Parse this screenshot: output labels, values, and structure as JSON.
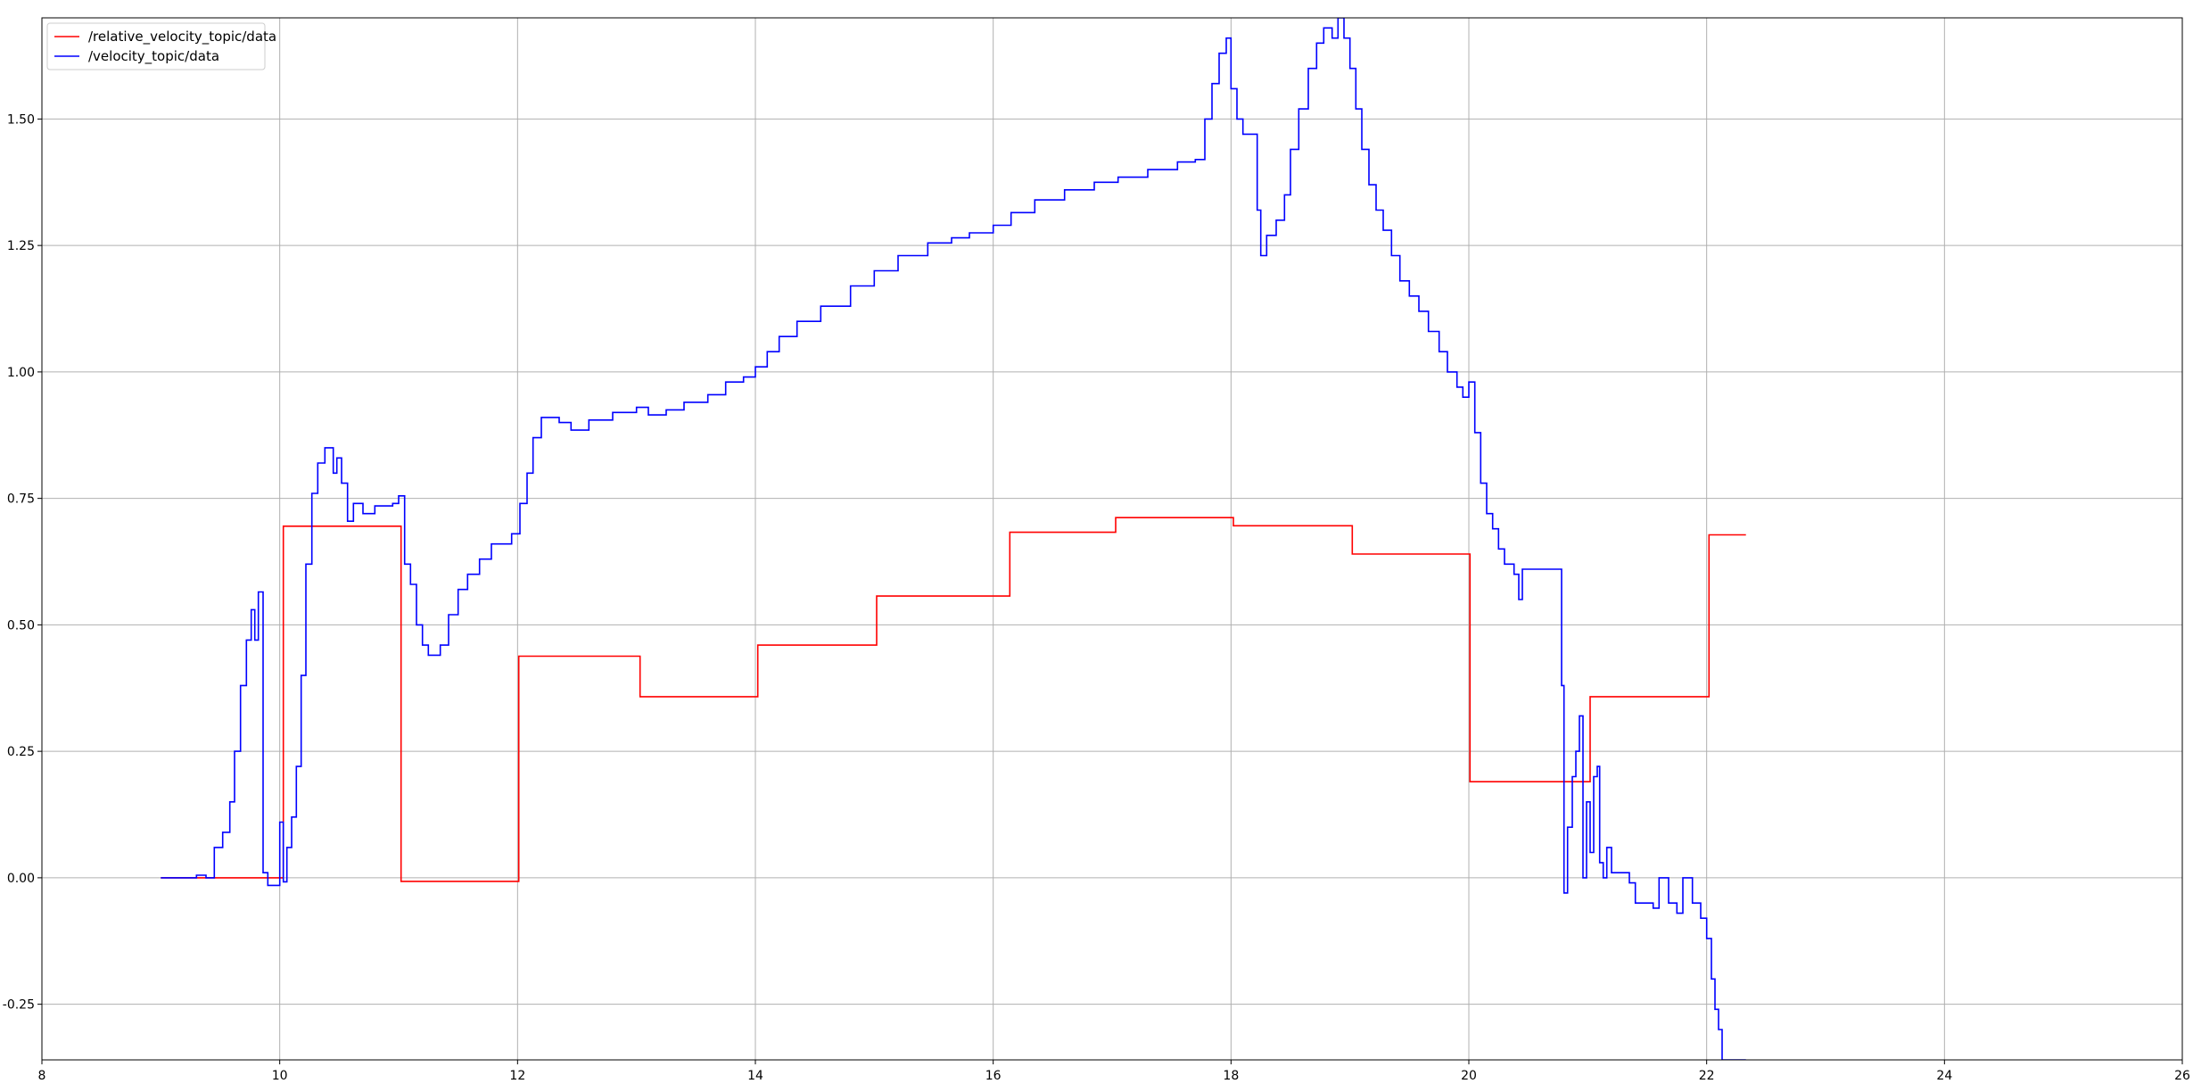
{
  "chart_data": {
    "type": "line",
    "title": "",
    "xlabel": "",
    "ylabel": "",
    "xlim": [
      8,
      26
    ],
    "ylim": [
      -0.36,
      1.7
    ],
    "grid": true,
    "legend_placement": "top-left",
    "x_ticks": [
      "8",
      "10",
      "12",
      "14",
      "16",
      "18",
      "20",
      "22",
      "24",
      "26"
    ],
    "y_ticks": [
      "-0.25",
      "0.00",
      "0.25",
      "0.50",
      "0.75",
      "1.00",
      "1.25",
      "1.50"
    ],
    "series": [
      {
        "name": "/relative_velocity_topic/data",
        "color": "#ff0000",
        "step": true,
        "points": [
          [
            9.0,
            0.0
          ],
          [
            10.03,
            0.0
          ],
          [
            10.03,
            0.695
          ],
          [
            11.02,
            0.695
          ],
          [
            11.02,
            -0.007
          ],
          [
            12.01,
            -0.007
          ],
          [
            12.01,
            0.438
          ],
          [
            13.03,
            0.438
          ],
          [
            13.03,
            0.358
          ],
          [
            14.02,
            0.358
          ],
          [
            14.02,
            0.46
          ],
          [
            15.02,
            0.46
          ],
          [
            15.02,
            0.557
          ],
          [
            16.14,
            0.557
          ],
          [
            16.14,
            0.683
          ],
          [
            17.03,
            0.683
          ],
          [
            17.03,
            0.712
          ],
          [
            18.02,
            0.712
          ],
          [
            18.02,
            0.696
          ],
          [
            19.02,
            0.696
          ],
          [
            19.02,
            0.64
          ],
          [
            20.01,
            0.64
          ],
          [
            20.01,
            0.19
          ],
          [
            21.02,
            0.19
          ],
          [
            21.02,
            0.358
          ],
          [
            22.02,
            0.358
          ],
          [
            22.02,
            0.678
          ],
          [
            22.33,
            0.678
          ]
        ]
      },
      {
        "name": "/velocity_topic/data",
        "color": "#0000ff",
        "step": true,
        "points": [
          [
            9.0,
            0.0
          ],
          [
            9.2,
            0.0
          ],
          [
            9.3,
            0.005
          ],
          [
            9.38,
            0.0
          ],
          [
            9.45,
            0.0
          ],
          [
            9.45,
            0.06
          ],
          [
            9.52,
            0.09
          ],
          [
            9.58,
            0.15
          ],
          [
            9.62,
            0.25
          ],
          [
            9.67,
            0.38
          ],
          [
            9.72,
            0.47
          ],
          [
            9.76,
            0.53
          ],
          [
            9.79,
            0.47
          ],
          [
            9.82,
            0.565
          ],
          [
            9.86,
            0.01
          ],
          [
            9.9,
            -0.015
          ],
          [
            10.0,
            -0.015
          ],
          [
            10.0,
            0.11
          ],
          [
            10.03,
            -0.008
          ],
          [
            10.06,
            0.06
          ],
          [
            10.1,
            0.12
          ],
          [
            10.14,
            0.22
          ],
          [
            10.18,
            0.4
          ],
          [
            10.22,
            0.62
          ],
          [
            10.27,
            0.76
          ],
          [
            10.32,
            0.82
          ],
          [
            10.38,
            0.85
          ],
          [
            10.45,
            0.8
          ],
          [
            10.48,
            0.83
          ],
          [
            10.52,
            0.78
          ],
          [
            10.57,
            0.705
          ],
          [
            10.62,
            0.74
          ],
          [
            10.7,
            0.72
          ],
          [
            10.8,
            0.735
          ],
          [
            10.95,
            0.74
          ],
          [
            11.0,
            0.755
          ],
          [
            11.05,
            0.62
          ],
          [
            11.1,
            0.58
          ],
          [
            11.15,
            0.5
          ],
          [
            11.2,
            0.46
          ],
          [
            11.25,
            0.44
          ],
          [
            11.35,
            0.46
          ],
          [
            11.42,
            0.52
          ],
          [
            11.5,
            0.57
          ],
          [
            11.58,
            0.6
          ],
          [
            11.68,
            0.63
          ],
          [
            11.78,
            0.66
          ],
          [
            11.95,
            0.68
          ],
          [
            12.02,
            0.74
          ],
          [
            12.08,
            0.8
          ],
          [
            12.13,
            0.87
          ],
          [
            12.2,
            0.91
          ],
          [
            12.35,
            0.9
          ],
          [
            12.45,
            0.885
          ],
          [
            12.6,
            0.905
          ],
          [
            12.8,
            0.92
          ],
          [
            13.0,
            0.93
          ],
          [
            13.1,
            0.915
          ],
          [
            13.25,
            0.925
          ],
          [
            13.4,
            0.94
          ],
          [
            13.6,
            0.955
          ],
          [
            13.75,
            0.98
          ],
          [
            13.9,
            0.99
          ],
          [
            14.0,
            1.01
          ],
          [
            14.1,
            1.04
          ],
          [
            14.2,
            1.07
          ],
          [
            14.35,
            1.1
          ],
          [
            14.55,
            1.13
          ],
          [
            14.8,
            1.17
          ],
          [
            15.0,
            1.2
          ],
          [
            15.2,
            1.23
          ],
          [
            15.45,
            1.255
          ],
          [
            15.65,
            1.265
          ],
          [
            15.8,
            1.275
          ],
          [
            16.0,
            1.29
          ],
          [
            16.15,
            1.315
          ],
          [
            16.35,
            1.34
          ],
          [
            16.6,
            1.36
          ],
          [
            16.85,
            1.375
          ],
          [
            17.05,
            1.385
          ],
          [
            17.3,
            1.4
          ],
          [
            17.55,
            1.415
          ],
          [
            17.7,
            1.42
          ],
          [
            17.78,
            1.5
          ],
          [
            17.84,
            1.57
          ],
          [
            17.9,
            1.63
          ],
          [
            17.96,
            1.66
          ],
          [
            18.0,
            1.56
          ],
          [
            18.05,
            1.5
          ],
          [
            18.1,
            1.47
          ],
          [
            18.18,
            1.47
          ],
          [
            18.22,
            1.32
          ],
          [
            18.25,
            1.23
          ],
          [
            18.3,
            1.27
          ],
          [
            18.38,
            1.3
          ],
          [
            18.45,
            1.35
          ],
          [
            18.5,
            1.44
          ],
          [
            18.57,
            1.52
          ],
          [
            18.65,
            1.6
          ],
          [
            18.72,
            1.65
          ],
          [
            18.78,
            1.68
          ],
          [
            18.85,
            1.66
          ],
          [
            18.9,
            1.7
          ],
          [
            18.95,
            1.66
          ],
          [
            19.0,
            1.6
          ],
          [
            19.05,
            1.52
          ],
          [
            19.1,
            1.44
          ],
          [
            19.16,
            1.37
          ],
          [
            19.22,
            1.32
          ],
          [
            19.28,
            1.28
          ],
          [
            19.35,
            1.23
          ],
          [
            19.42,
            1.18
          ],
          [
            19.5,
            1.15
          ],
          [
            19.58,
            1.12
          ],
          [
            19.66,
            1.08
          ],
          [
            19.75,
            1.04
          ],
          [
            19.82,
            1.0
          ],
          [
            19.9,
            0.97
          ],
          [
            19.95,
            0.95
          ],
          [
            20.0,
            0.98
          ],
          [
            20.05,
            0.88
          ],
          [
            20.1,
            0.78
          ],
          [
            20.15,
            0.72
          ],
          [
            20.2,
            0.69
          ],
          [
            20.25,
            0.65
          ],
          [
            20.3,
            0.62
          ],
          [
            20.38,
            0.6
          ],
          [
            20.42,
            0.55
          ],
          [
            20.45,
            0.61
          ],
          [
            20.75,
            0.61
          ],
          [
            20.78,
            0.38
          ],
          [
            20.8,
            -0.03
          ],
          [
            20.83,
            0.1
          ],
          [
            20.87,
            0.2
          ],
          [
            20.9,
            0.25
          ],
          [
            20.93,
            0.32
          ],
          [
            20.96,
            0.0
          ],
          [
            20.99,
            0.15
          ],
          [
            21.02,
            0.05
          ],
          [
            21.05,
            0.2
          ],
          [
            21.08,
            0.22
          ],
          [
            21.1,
            0.03
          ],
          [
            21.13,
            0.0
          ],
          [
            21.16,
            0.06
          ],
          [
            21.2,
            0.01
          ],
          [
            21.35,
            -0.01
          ],
          [
            21.4,
            -0.05
          ],
          [
            21.55,
            -0.06
          ],
          [
            21.6,
            0.0
          ],
          [
            21.68,
            -0.05
          ],
          [
            21.75,
            -0.07
          ],
          [
            21.8,
            0.0
          ],
          [
            21.88,
            -0.05
          ],
          [
            21.95,
            -0.08
          ],
          [
            22.0,
            -0.12
          ],
          [
            22.04,
            -0.2
          ],
          [
            22.07,
            -0.26
          ],
          [
            22.1,
            -0.3
          ],
          [
            22.13,
            -0.36
          ],
          [
            22.33,
            -0.36
          ]
        ]
      }
    ]
  }
}
